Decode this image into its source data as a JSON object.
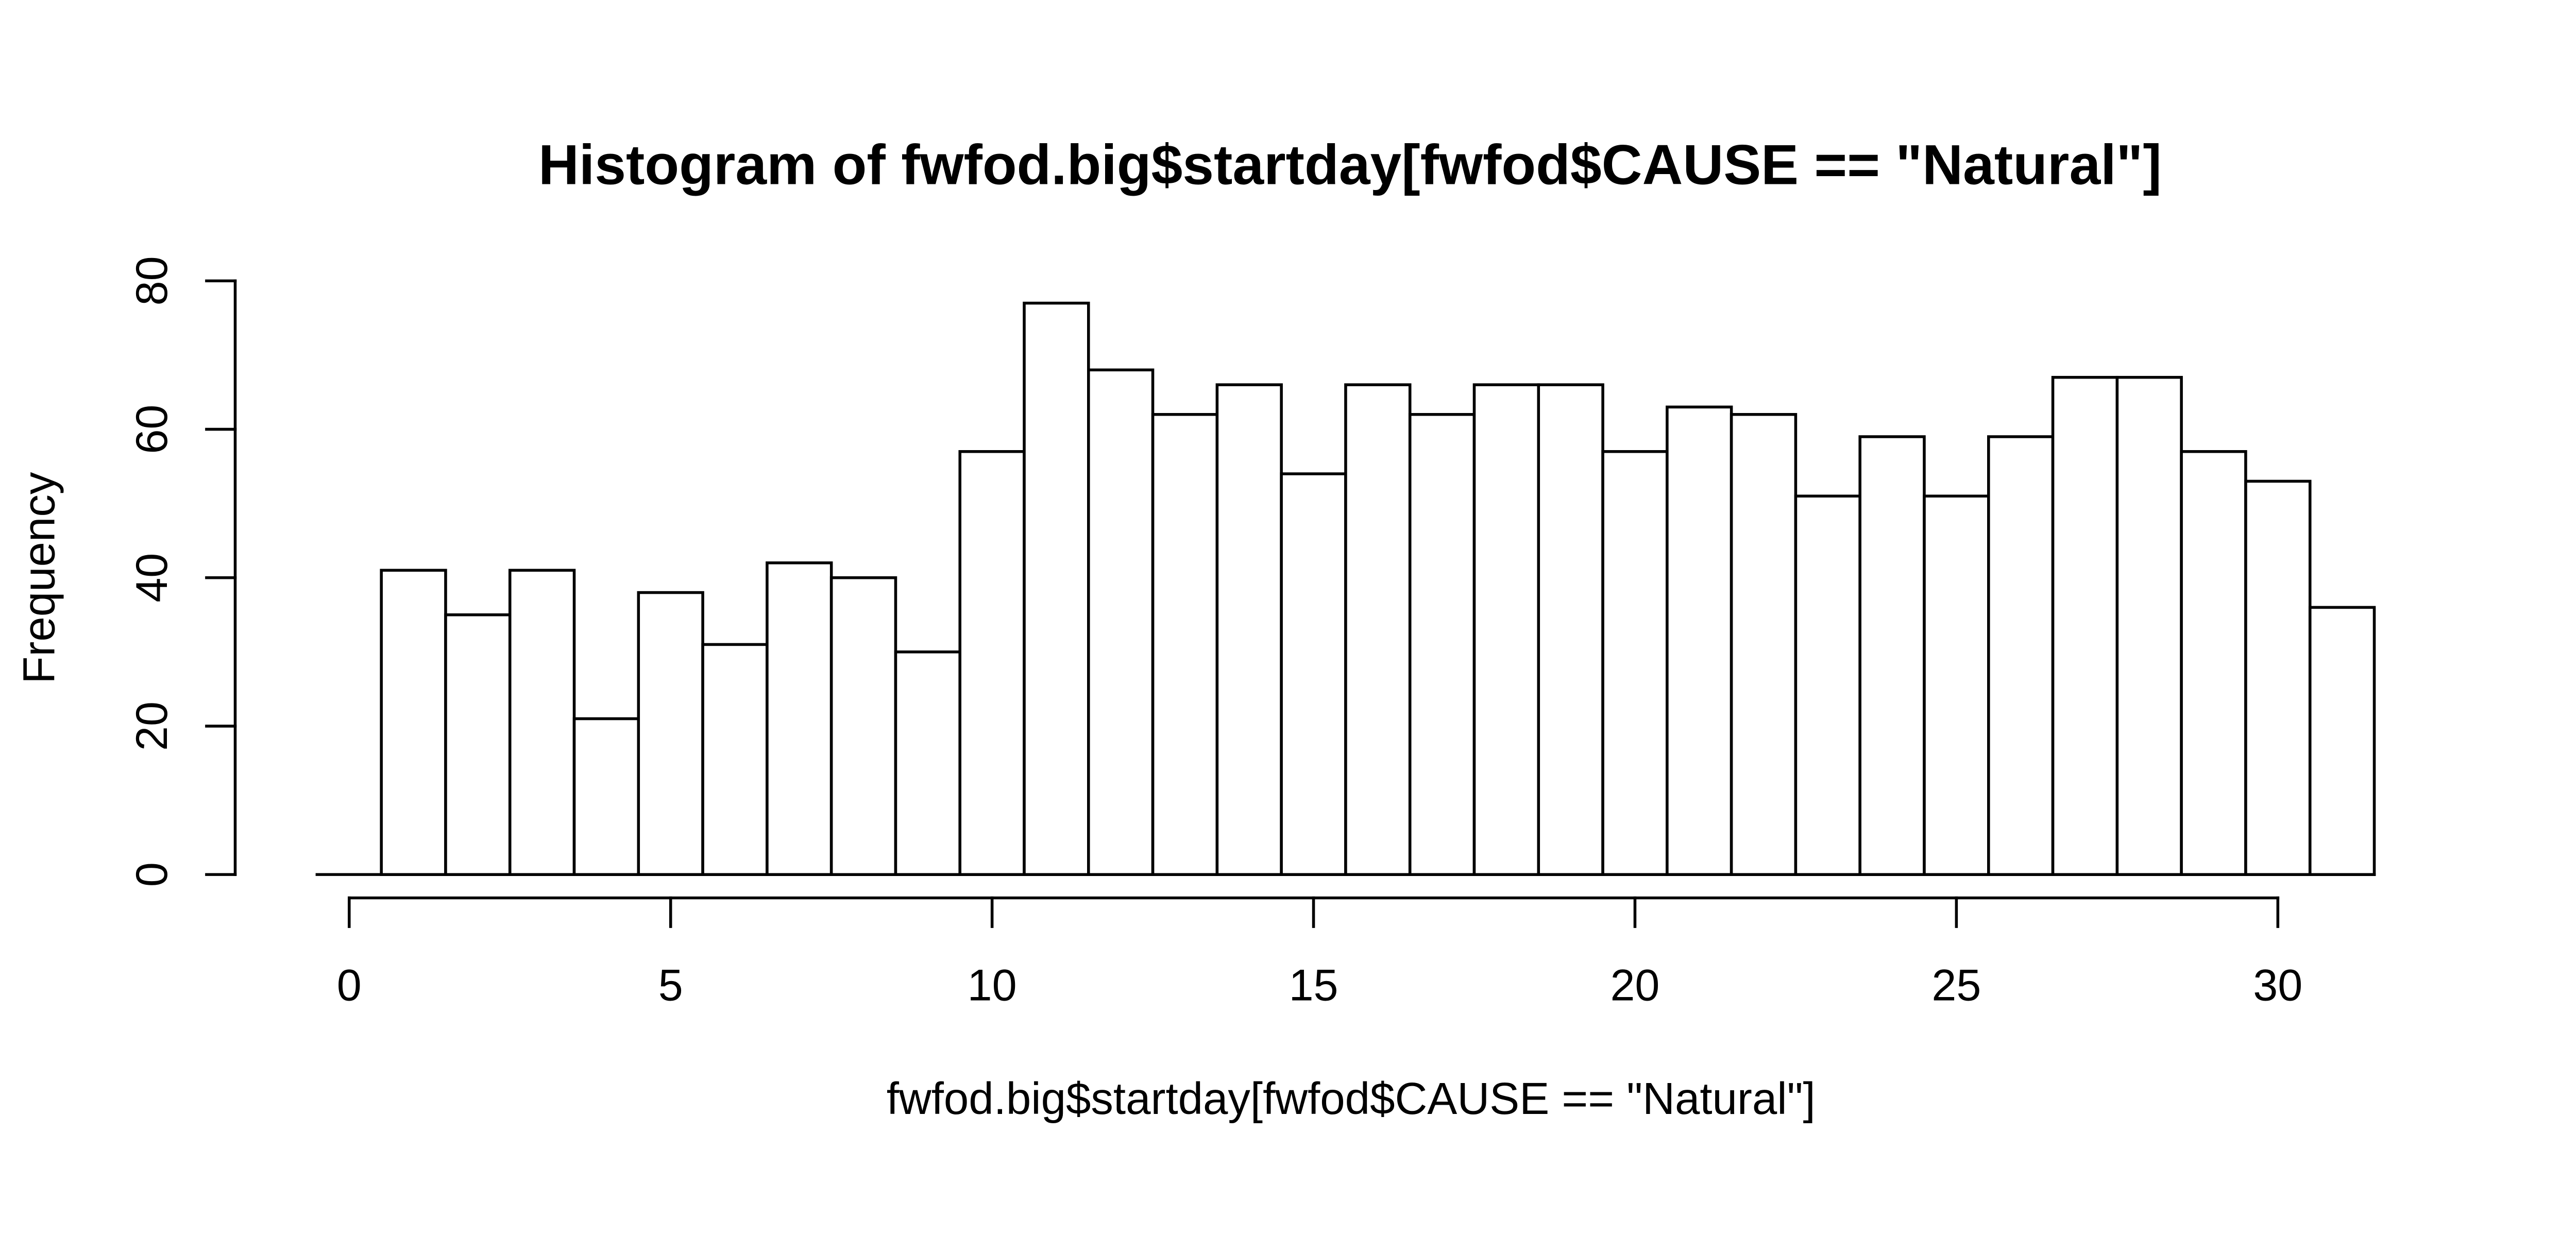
{
  "window": {
    "background": "#ffffff"
  },
  "chart_data": {
    "type": "bar",
    "chart_kind": "histogram",
    "title": "Histogram of fwfod.big$startday[fwfod$CAUSE == \"Natural\"]",
    "xlabel": "fwfod.big$startday[fwfod$CAUSE == \"Natural\"]",
    "ylabel": "Frequency",
    "bin_centers": [
      1,
      2,
      3,
      4,
      5,
      6,
      7,
      8,
      9,
      10,
      11,
      12,
      13,
      14,
      15,
      16,
      17,
      18,
      19,
      20,
      21,
      22,
      23,
      24,
      25,
      26,
      27,
      28,
      29,
      30,
      31
    ],
    "bin_width": 1,
    "values": [
      41,
      35,
      41,
      21,
      38,
      31,
      42,
      40,
      30,
      57,
      77,
      68,
      62,
      66,
      54,
      66,
      62,
      66,
      66,
      57,
      63,
      62,
      51,
      59,
      51,
      59,
      67,
      67,
      57,
      53,
      36
    ],
    "x_ticks": [
      0,
      5,
      10,
      15,
      20,
      25,
      30
    ],
    "y_ticks": [
      0,
      20,
      40,
      60,
      80
    ],
    "xlim": [
      -0.5,
      31.5
    ],
    "ylim": [
      0,
      80
    ],
    "grid": false,
    "legend": null,
    "bar_fill": "#ffffff",
    "line_color": "#000000",
    "text_color": "#000000",
    "background": "#ffffff"
  }
}
